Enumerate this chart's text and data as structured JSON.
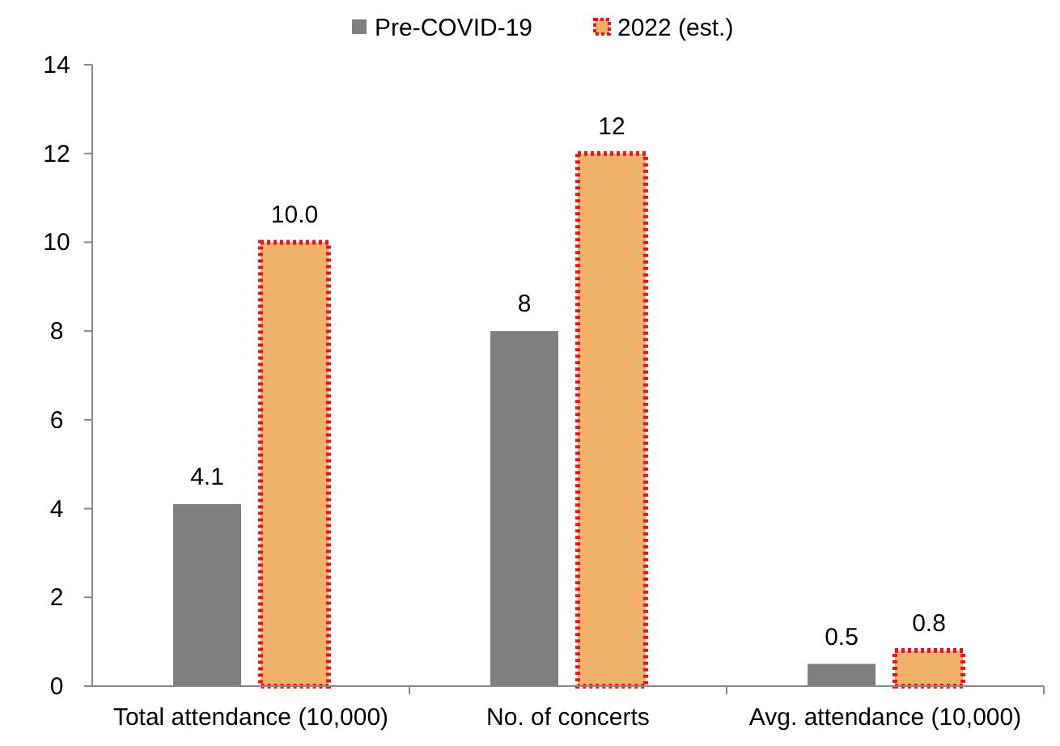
{
  "chart_data": {
    "type": "bar",
    "categories": [
      "Total attendance (10,000)",
      "No. of concerts",
      "Avg. attendance (10,000)"
    ],
    "series": [
      {
        "name": "Pre-COVID-19",
        "color": "#7f7f7f",
        "values": [
          4.1,
          8,
          0.5
        ],
        "value_labels": [
          "4.1",
          "8",
          "0.5"
        ]
      },
      {
        "name": "2022 (est.)",
        "color": "#f0b26b",
        "values": [
          10.0,
          12,
          0.8
        ],
        "value_labels": [
          "10.0",
          "12",
          "0.8"
        ]
      }
    ],
    "ylim": [
      0,
      14
    ],
    "yticks": [
      0,
      2,
      4,
      6,
      8,
      10,
      12,
      14
    ],
    "grid": false,
    "legend": "top"
  }
}
